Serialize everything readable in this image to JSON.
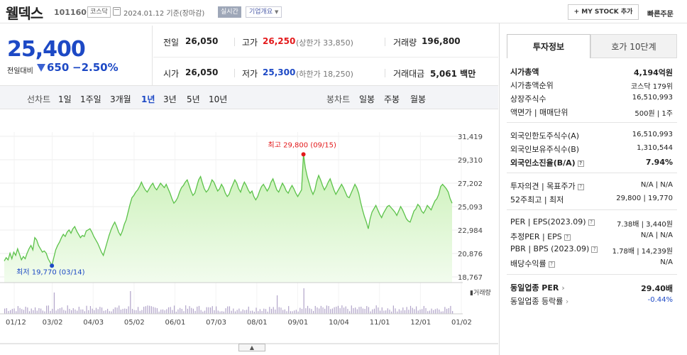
{
  "header": {
    "name": "웰덱스",
    "code": "101160",
    "market": "코스닥",
    "date": "2024.01.12  기준(장마감)",
    "realtime": "실시간",
    "company_overview": "기업개요",
    "mystock": "+ MY STOCK 추가",
    "quick_order": "빠른주문"
  },
  "price": {
    "current": "25,400",
    "change_label": "전일대비",
    "change": "650",
    "change_pct": "−2.50%"
  },
  "stats": {
    "prev_label": "전일",
    "prev": "26,050",
    "high_label": "고가",
    "high": "26,250",
    "upper_limit": "(상한가 33,850)",
    "volume_label": "거래량",
    "volume": "196,800",
    "open_label": "시가",
    "open": "26,050",
    "low_label": "저가",
    "low": "25,300",
    "lower_limit": "(하한가 18,250)",
    "amount_label": "거래대금",
    "amount": "5,061",
    "amount_unit": "백만"
  },
  "tabs": {
    "line_label": "선차트",
    "line": [
      "1일",
      "1주일",
      "3개월",
      "1년",
      "3년",
      "5년",
      "10년"
    ],
    "active": "1년",
    "candle_label": "봉차트",
    "candle": [
      "일봉",
      "주봉",
      "월봉"
    ]
  },
  "chart_data": {
    "type": "area",
    "y_ticks": [
      "31,419",
      "29,310",
      "27,202",
      "25,093",
      "22,984",
      "20,876",
      "18,767"
    ],
    "ylim": [
      18767,
      31419
    ],
    "x_ticks": [
      "01/12",
      "03/02",
      "04/03",
      "05/02",
      "06/01",
      "07/03",
      "08/01",
      "09/01",
      "10/04",
      "11/01",
      "12/01",
      "01/02"
    ],
    "high_annotation": "최고 29,800 (09/15)",
    "low_annotation": "최저 19,770 (03/14)",
    "volume_label": "거래량",
    "color": "#5cc24a",
    "values": [
      20200,
      20500,
      20300,
      20900,
      20400,
      21000,
      20700,
      21300,
      20800,
      20300,
      20600,
      20400,
      20900,
      21300,
      21600,
      21200,
      22300,
      22100,
      21600,
      21300,
      21000,
      21100,
      20900,
      20400,
      20100,
      19770,
      20500,
      21200,
      21600,
      21900,
      22300,
      22600,
      22400,
      22800,
      23000,
      22700,
      23100,
      23300,
      22900,
      22600,
      22300,
      22500,
      22400,
      22900,
      23000,
      23100,
      22800,
      22400,
      22100,
      21800,
      21400,
      21000,
      20700,
      21300,
      21900,
      22500,
      23000,
      23400,
      23700,
      23300,
      22800,
      22500,
      22900,
      23500,
      23900,
      24600,
      25300,
      25900,
      26100,
      26400,
      26600,
      26900,
      27300,
      26900,
      26600,
      26400,
      26700,
      27000,
      27200,
      26800,
      26600,
      26900,
      27200,
      27000,
      26800,
      27100,
      26700,
      26300,
      25800,
      25400,
      25600,
      25900,
      26400,
      26800,
      27000,
      27300,
      27500,
      27000,
      26500,
      26100,
      26300,
      26900,
      27500,
      27800,
      27200,
      26700,
      26400,
      26600,
      27000,
      27500,
      27300,
      26900,
      26500,
      26700,
      27100,
      26800,
      26300,
      26000,
      26200,
      26700,
      27100,
      27500,
      27200,
      26700,
      26400,
      26900,
      27300,
      27000,
      26600,
      26300,
      26500,
      26000,
      25700,
      26000,
      26500,
      26900,
      27100,
      26800,
      26500,
      26800,
      27300,
      27600,
      27100,
      26600,
      26400,
      26800,
      27200,
      26900,
      26500,
      26300,
      26700,
      27000,
      26700,
      26300,
      26000,
      26300,
      26600,
      29800,
      28600,
      27800,
      27200,
      26600,
      26200,
      26600,
      27400,
      27900,
      27500,
      27000,
      26600,
      26900,
      27300,
      27600,
      27100,
      26600,
      26200,
      26500,
      26800,
      27100,
      26800,
      26400,
      26000,
      25900,
      26300,
      26700,
      27100,
      26800,
      26300,
      25500,
      24800,
      24200,
      23700,
      23100,
      24000,
      24600,
      24900,
      25200,
      24800,
      24400,
      24100,
      24500,
      24800,
      25100,
      25200,
      25000,
      24800,
      24600,
      24300,
      24700,
      25100,
      24800,
      24400,
      24000,
      23800,
      23700,
      24200,
      24700,
      24900,
      25300,
      25100,
      24700,
      24500,
      24800,
      25200,
      25000,
      24800,
      25200,
      25600,
      25800,
      26200,
      26900,
      27100,
      26900,
      26700,
      26400,
      25800,
      25400
    ]
  },
  "panel": {
    "tab_info": "투자정보",
    "tab_quote": "호가 10단계",
    "rows": [
      {
        "label": "시가총액",
        "value": "4,194억원",
        "bold": true
      },
      {
        "label": "시가총액순위",
        "value": "코스닥 179위"
      },
      {
        "label": "상장주식수",
        "value": "16,510,993"
      },
      {
        "label": "액면가 | 매매단위",
        "value": "500원  |  1주"
      },
      {
        "label": "외국인한도주식수(A)",
        "value": "16,510,993"
      },
      {
        "label": "외국인보유주식수(B)",
        "value": "1,310,544"
      },
      {
        "label": "외국인소진율(B/A)",
        "value": "7.94%",
        "bold": true
      },
      {
        "label": "투자의견 | 목표주가",
        "value": "N/A  |  N/A"
      },
      {
        "label": "52주최고 | 최저",
        "value": "29,800  |  19,770"
      },
      {
        "label": "PER | EPS(2023.09)",
        "value": "7.38배  |  3,440원"
      },
      {
        "label": "추정PER | EPS",
        "value": "N/A  |  N/A"
      },
      {
        "label": "PBR | BPS (2023.09)",
        "value": "1.78배  |  14,239원"
      },
      {
        "label": "배당수익률",
        "value": "N/A"
      },
      {
        "label": "동일업종 PER",
        "value": "29.40배",
        "bold": true
      },
      {
        "label": "동일업종 등락률",
        "value": "-0.44%",
        "blue": true
      }
    ]
  }
}
